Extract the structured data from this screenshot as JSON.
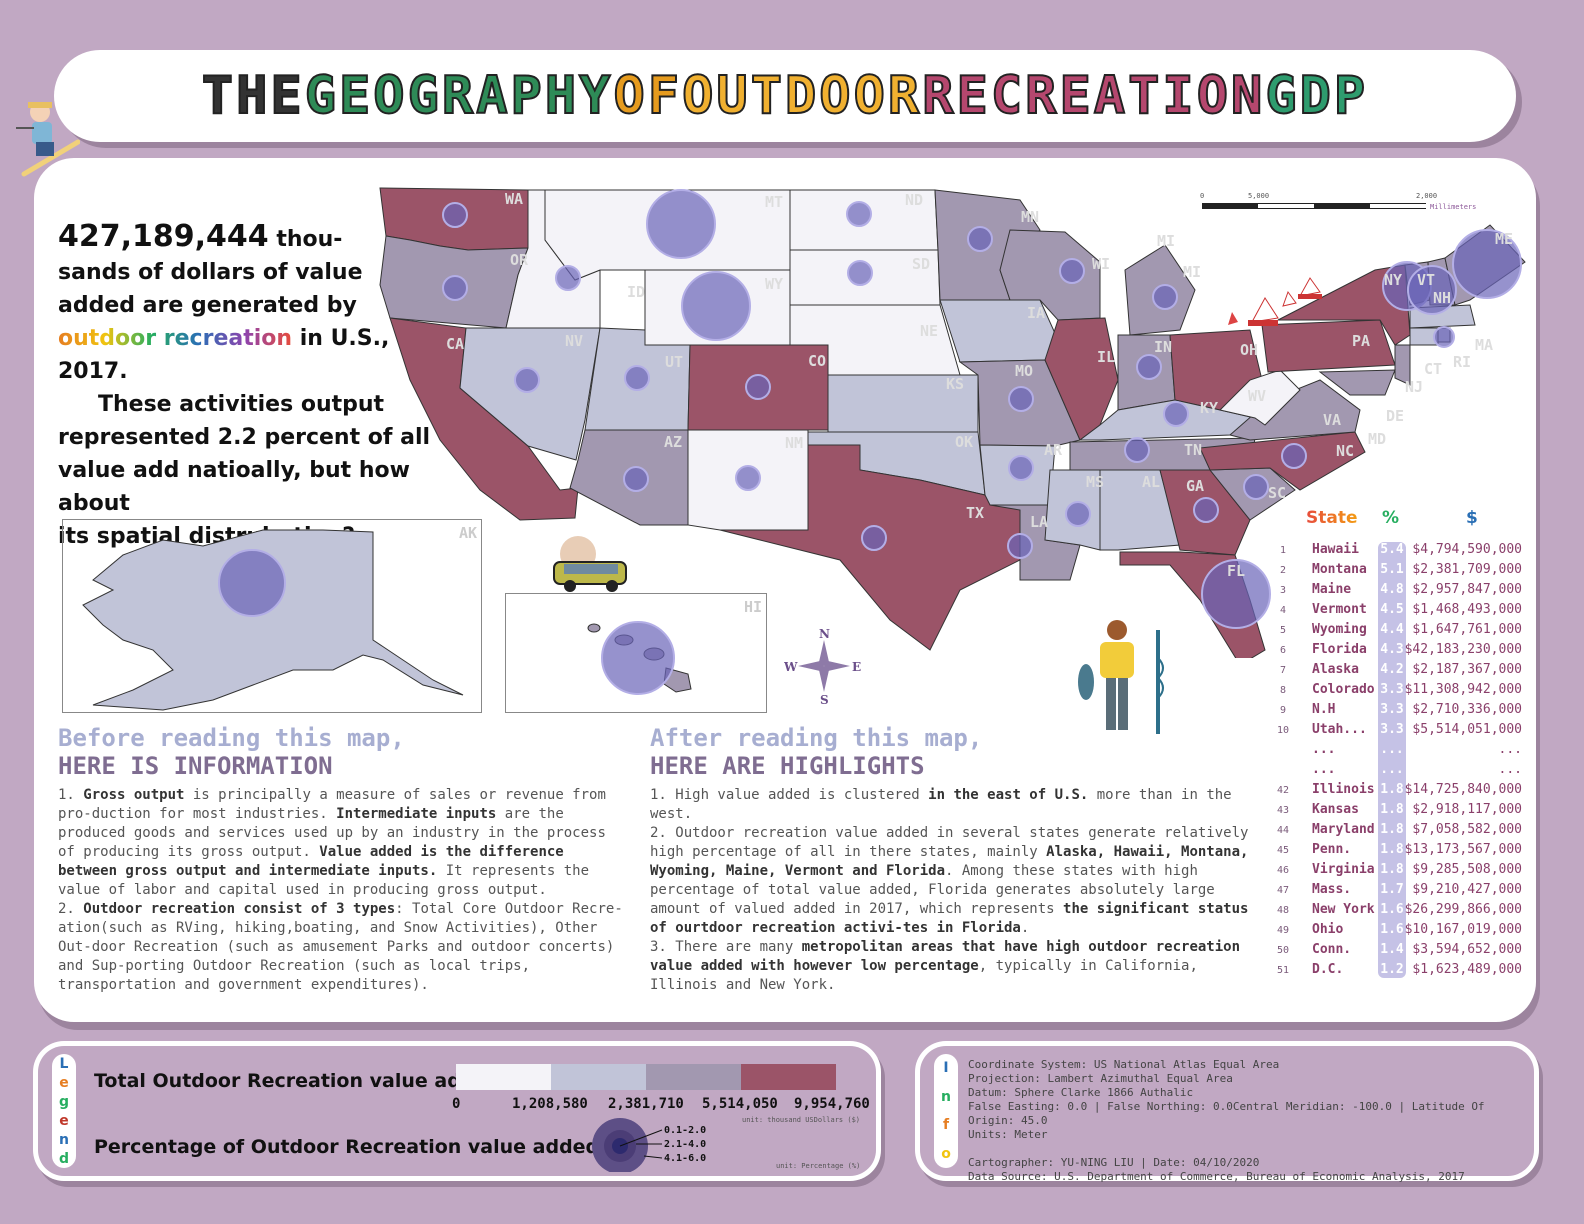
{
  "title": [
    "THE ",
    "GEOGRAPHY ",
    "OF ",
    "OUTDOOR ",
    "RECREATION ",
    "GDP"
  ],
  "title_colors": [
    "#222",
    "#2e8b57",
    "#f5a623",
    "#f5a623",
    "#c0392b",
    "#2e9c6e"
  ],
  "headline": {
    "number": "427,189,444",
    "line1": " thou-",
    "line2": "sands of dollars of value",
    "line3": "added are generated by",
    "rainbow": "outdoor recreation",
    "line4": " in U.S., 2017.",
    "line5": "These activities output",
    "line6": "represented 2.2 percent of all",
    "line7": "value add natioally, but how about",
    "line8": "its spatial distrubution?"
  },
  "scale_bar": {
    "t0": "0",
    "t1": "5,000",
    "t2": "2,000",
    "unit": "Millimeters"
  },
  "compass": {
    "n": "N",
    "s": "S",
    "e": "E",
    "w": "W"
  },
  "map_labels": {
    "WA": "WA",
    "OR": "OR",
    "CA": "CA",
    "MT": "MT",
    "ID": "ID",
    "WY": "WY",
    "NV": "NV",
    "UT": "UT",
    "CO": "CO",
    "AZ": "AZ",
    "NM": "NM",
    "ND": "ND",
    "SD": "SD",
    "NE": "NE",
    "KS": "KS",
    "OK": "OK",
    "TX": "TX",
    "MN": "MN",
    "IA": "IA",
    "MO": "MO",
    "AR": "AR",
    "LA": "LA",
    "WI": "WI",
    "IL": "IL",
    "MI": "MI",
    "IN": "IN",
    "OH": "OH",
    "KY": "KY",
    "TN": "TN",
    "MS": "MS",
    "AL": "AL",
    "GA": "GA",
    "FL": "FL",
    "SC": "SC",
    "NC": "NC",
    "VA": "VA",
    "WV": "WV",
    "PA": "PA",
    "NY": "NY",
    "VT": "VT",
    "NH": "NH",
    "ME": "ME",
    "MA": "MA",
    "RI": "RI",
    "CT": "CT",
    "NJ": "NJ",
    "DE": "DE",
    "MD": "MD",
    "MI2": "MI",
    "AK": "AK",
    "HI": "HI"
  },
  "table": {
    "h_state": "State",
    "h_pct": "%",
    "h_dollar": "$",
    "rows": [
      {
        "rank": "1",
        "state": "Hawaii",
        "pct": "5.4",
        "value": "$4,794,590,000"
      },
      {
        "rank": "2",
        "state": "Montana",
        "pct": "5.1",
        "value": "$2,381,709,000"
      },
      {
        "rank": "3",
        "state": "Maine",
        "pct": "4.8",
        "value": "$2,957,847,000"
      },
      {
        "rank": "4",
        "state": "Vermont",
        "pct": "4.5",
        "value": "$1,468,493,000"
      },
      {
        "rank": "5",
        "state": "Wyoming",
        "pct": "4.4",
        "value": "$1,647,761,000"
      },
      {
        "rank": "6",
        "state": "Florida",
        "pct": "4.3",
        "value": "$42,183,230,000"
      },
      {
        "rank": "7",
        "state": "Alaska",
        "pct": "4.2",
        "value": "$2,187,367,000"
      },
      {
        "rank": "8",
        "state": "Colorado",
        "pct": "3.3",
        "value": "$11,308,942,000"
      },
      {
        "rank": "9",
        "state": "N.H",
        "pct": "3.3",
        "value": "$2,710,336,000"
      },
      {
        "rank": "10",
        "state": "Utah...",
        "pct": "3.3",
        "value": "$5,514,051,000"
      },
      {
        "rank": "",
        "state": "...",
        "pct": "...",
        "value": "..."
      },
      {
        "rank": "",
        "state": "...",
        "pct": "...",
        "value": "..."
      },
      {
        "rank": "42",
        "state": "Illinois",
        "pct": "1.8",
        "value": "$14,725,840,000"
      },
      {
        "rank": "43",
        "state": "Kansas",
        "pct": "1.8",
        "value": "$2,918,117,000"
      },
      {
        "rank": "44",
        "state": "Maryland",
        "pct": "1.8",
        "value": "$7,058,582,000"
      },
      {
        "rank": "45",
        "state": "Penn.",
        "pct": "1.8",
        "value": "$13,173,567,000"
      },
      {
        "rank": "46",
        "state": "Virginia",
        "pct": "1.8",
        "value": "$9,285,508,000"
      },
      {
        "rank": "47",
        "state": "Mass.",
        "pct": "1.7",
        "value": "$9,210,427,000"
      },
      {
        "rank": "48",
        "state": "New York",
        "pct": "1.6",
        "value": "$26,299,866,000"
      },
      {
        "rank": "49",
        "state": "Ohio",
        "pct": "1.6",
        "value": "$10,167,019,000"
      },
      {
        "rank": "50",
        "state": "Conn.",
        "pct": "1.4",
        "value": "$3,594,652,000"
      },
      {
        "rank": "51",
        "state": "D.C.",
        "pct": "1.2",
        "value": "$1,623,489,000"
      }
    ]
  },
  "before": {
    "h1": "Before reading this map,",
    "h2": "HERE IS INFORMATION",
    "p1_a": "1. ",
    "p1_b": "Gross output",
    "p1_c": " is principally a measure of sales or revenue from pro-duction for most industries. ",
    "p1_d": "Intermediate inputs",
    "p1_e": " are the produced goods and services used up by an industry in the process of producing its gross output. ",
    "p1_f": "Value added is the difference between gross output and intermediate inputs.",
    "p1_g": " It represents the value of labor and capital used in producing gross output.",
    "p2_a": "2. ",
    "p2_b": "Outdoor recreation consist of 3 types",
    "p2_c": ": Total Core Outdoor Recre-ation(such as RVing, hiking,boating, and Snow Activities), Other Out-door Recreation (such as amusement Parks and outdoor concerts) and Sup-porting Outdoor Recreation (such as local trips, transportation and government expenditures)."
  },
  "after": {
    "h1": "After reading this map,",
    "h2": "HERE ARE HIGHLIGHTS",
    "p1_a": "1. High value added is clustered ",
    "p1_b": "in the east of U.S.",
    "p1_c": " more than in the west.",
    "p2_a": "2. Outdoor recreation value added in several states generate relatively high percentage of all in there states, mainly ",
    "p2_b": "Alaska, Hawaii, Montana, Wyoming, Maine, Vermont and Florida",
    "p2_c": ". Among these states with high percentage of total value added, Florida generates absolutely large amount of valued added in 2017, which represents ",
    "p2_d": "the significant status of ourtdoor recreation activi-tes in Florida",
    "p2_e": ".",
    "p3_a": "3. There are many ",
    "p3_b": "metropolitan areas that have high outdoor recreation value added with however low percentage",
    "p3_c": ", typically in California, Illinois and New York."
  },
  "legend": {
    "strip": [
      "L",
      "e",
      "g",
      "e",
      "n",
      "d"
    ],
    "strip_colors": [
      "#2a6fb5",
      "#e67e22",
      "#27ae60",
      "#c0392b",
      "#2a6fb5",
      "#27ae60"
    ],
    "value_title": "Total Outdoor Recreation value added",
    "ramp_colors": [
      "#f4f3f8",
      "#c1c4d8",
      "#a298b0",
      "#9b5468"
    ],
    "ticks": [
      "0",
      "1,208,580",
      "2,381,710",
      "5,514,050",
      "9,954,760"
    ],
    "value_unit": "unit: thousand USDollars ($)",
    "pct_title": "Percentage of Outdoor Recreation value added",
    "pct_classes": [
      "0.1-2.0",
      "2.1-4.0",
      "4.1-6.0"
    ],
    "pct_unit": "unit: Percentage (%)"
  },
  "info": {
    "strip": [
      "I",
      "n",
      "f",
      "o"
    ],
    "strip_colors": [
      "#2a6fb5",
      "#27ae60",
      "#e67e22",
      "#f1c40f"
    ],
    "lines": [
      "Coordinate System: US National Atlas Equal Area",
      "Projection: Lambert Azimuthal Equal Area",
      "Datum: Sphere Clarke 1866 Authalic",
      "False Easting: 0.0 | False Northing: 0.0Central Meridian: -100.0 | Latitude Of Origin: 45.0",
      "Units: Meter",
      "",
      "Cartographer: YU-NING LIU | Date: 04/10/2020",
      "Data Source: U.S. Department of Commerce, Bureau of Economic Analysis, 2017"
    ]
  }
}
